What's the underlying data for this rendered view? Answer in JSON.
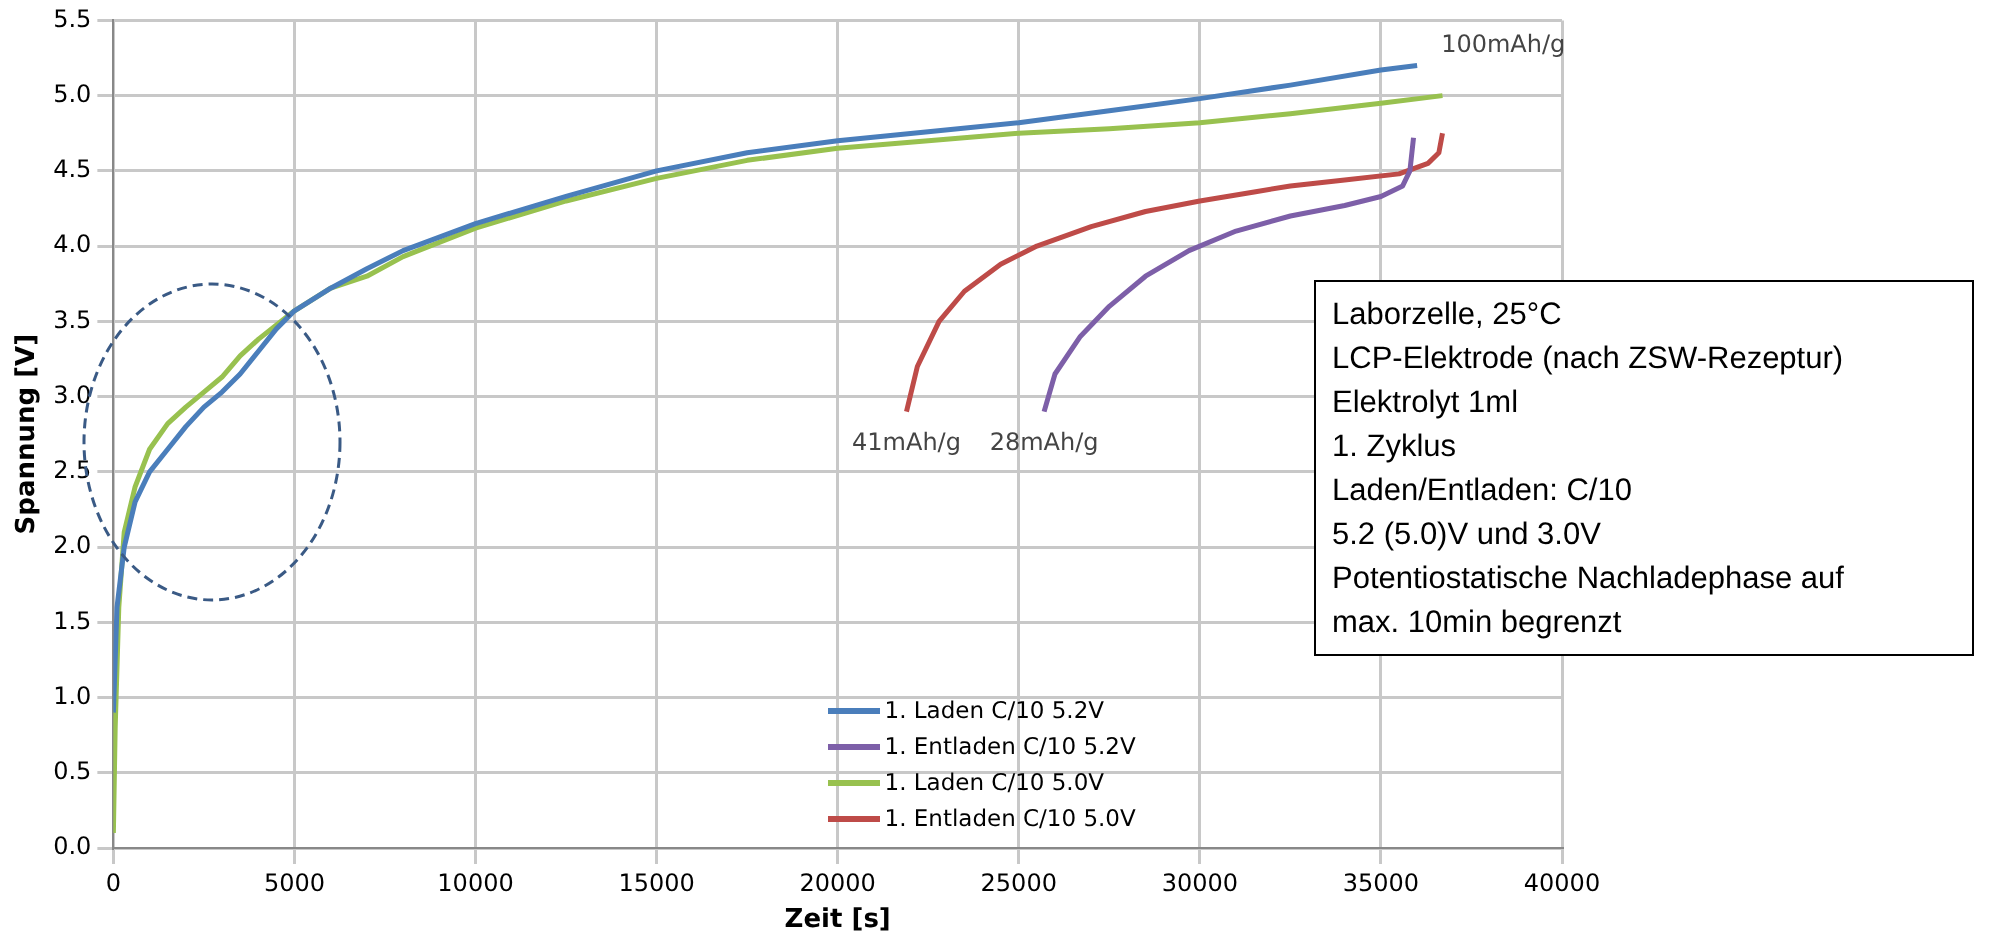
{
  "chart_data": {
    "type": "line",
    "xlabel": "Zeit [s]",
    "ylabel": "Spannung [V]",
    "xlim": [
      0,
      40000
    ],
    "xticks": [
      0,
      5000,
      10000,
      15000,
      20000,
      25000,
      30000,
      35000,
      40000
    ],
    "ylim": [
      0,
      5.5
    ],
    "yticks": [
      {
        "value": 0,
        "label": "0.0"
      },
      {
        "value": 0.5,
        "label": "0.5"
      },
      {
        "value": 1,
        "label": "1.0"
      },
      {
        "value": 1.5,
        "label": "1.5"
      },
      {
        "value": 2,
        "label": "2.0"
      },
      {
        "value": 2.5,
        "label": "2.5"
      },
      {
        "value": 3,
        "label": "3.0"
      },
      {
        "value": 3.5,
        "label": "3.5"
      },
      {
        "value": 4,
        "label": "4.0"
      },
      {
        "value": 4.5,
        "label": "4.5"
      },
      {
        "value": 5,
        "label": "5.0"
      },
      {
        "value": 5.5,
        "label": "5.5"
      }
    ],
    "grid": true,
    "legend": "bottom",
    "marker": "none",
    "line_style": "solid",
    "series": [
      {
        "name": "1. Laden C/10 5.2V",
        "color": "#4a7ebb",
        "x": [
          0,
          100,
          300,
          600,
          1000,
          1500,
          2000,
          2500,
          3000,
          3500,
          4000,
          4500,
          5000,
          6000,
          7000,
          8000,
          10000,
          12500,
          15000,
          17500,
          20000,
          22500,
          25000,
          27500,
          30000,
          32500,
          35000,
          36000
        ],
        "values": [
          0.9,
          1.6,
          2.0,
          2.3,
          2.5,
          2.65,
          2.8,
          2.93,
          3.03,
          3.15,
          3.3,
          3.45,
          3.57,
          3.72,
          3.85,
          3.97,
          4.15,
          4.33,
          4.5,
          4.62,
          4.7,
          4.76,
          4.82,
          4.9,
          4.98,
          5.07,
          5.17,
          5.2
        ]
      },
      {
        "name": "1. Entladen C/10 5.2V",
        "color": "#7d5fa8",
        "x": [
          25700,
          26000,
          26700,
          27500,
          28500,
          29700,
          31000,
          32500,
          34000,
          35000,
          35600,
          35800,
          35900
        ],
        "values": [
          2.9,
          3.15,
          3.4,
          3.6,
          3.8,
          3.97,
          4.1,
          4.2,
          4.27,
          4.33,
          4.4,
          4.5,
          4.72
        ]
      },
      {
        "name": "1. Laden C/10 5.0V",
        "color": "#98c14f",
        "x": [
          0,
          50,
          150,
          300,
          600,
          1000,
          1500,
          2000,
          2500,
          3000,
          3500,
          4000,
          5000,
          6000,
          7000,
          8000,
          10000,
          12500,
          15000,
          17500,
          20000,
          22500,
          25000,
          27500,
          30000,
          32500,
          35000,
          36700
        ],
        "values": [
          0.1,
          0.8,
          1.6,
          2.1,
          2.4,
          2.65,
          2.82,
          2.93,
          3.03,
          3.13,
          3.27,
          3.38,
          3.57,
          3.72,
          3.8,
          3.93,
          4.12,
          4.3,
          4.45,
          4.57,
          4.65,
          4.7,
          4.75,
          4.78,
          4.82,
          4.88,
          4.95,
          5.0
        ]
      },
      {
        "name": "1. Entladen C/10 5.0V",
        "color": "#be4b48",
        "x": [
          21900,
          22200,
          22800,
          23500,
          24500,
          25500,
          27000,
          28500,
          30000,
          31500,
          32500,
          34000,
          35500,
          36300,
          36600,
          36700
        ],
        "values": [
          2.9,
          3.2,
          3.5,
          3.7,
          3.88,
          4.0,
          4.13,
          4.23,
          4.3,
          4.36,
          4.4,
          4.44,
          4.48,
          4.55,
          4.62,
          4.75
        ]
      }
    ],
    "annotations": [
      {
        "text": "100mAh/g",
        "x": 36000,
        "y": 5.2
      },
      {
        "text": "41mAh/g",
        "x": 21900,
        "y": 2.9
      },
      {
        "text": "28mAh/g",
        "x": 25700,
        "y": 2.9
      },
      "Laborzelle, 25°C",
      "LCP-Elektrode (nach ZSW-Rezeptur)",
      "Elektrolyt 1ml",
      "1. Zyklus",
      "Laden/Entladen: C/10",
      "5.2 (5.0)V und 3.0V",
      "Potentiostatische Nachladephase auf",
      "max. 10min begrenzt"
    ]
  }
}
